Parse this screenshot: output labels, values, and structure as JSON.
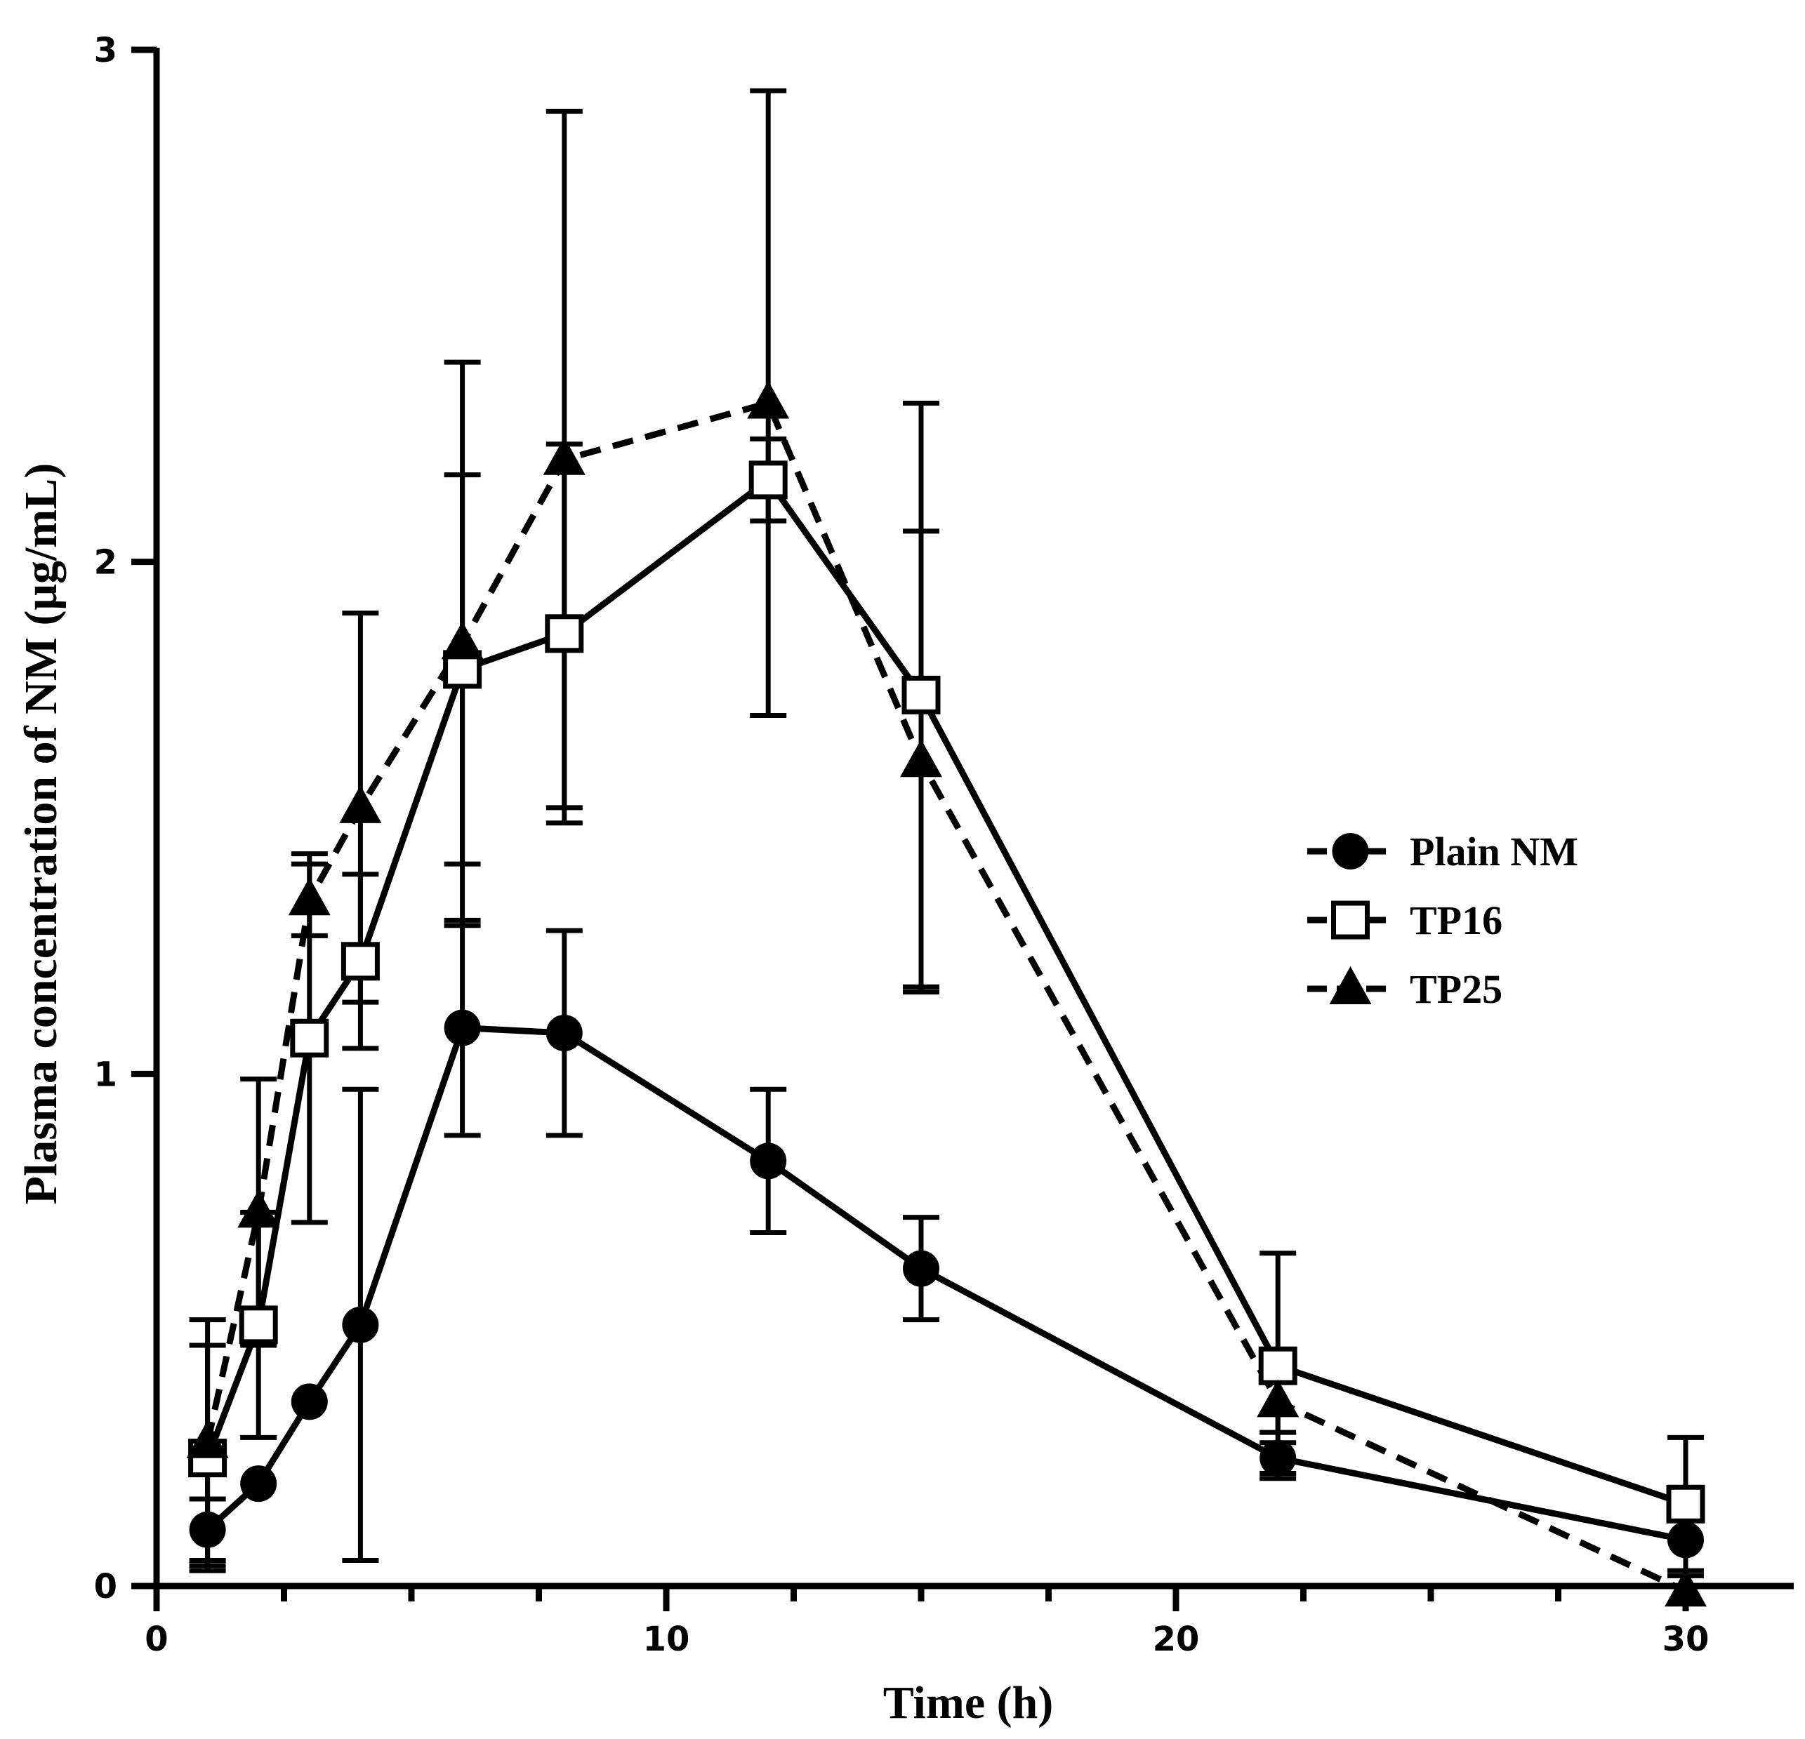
{
  "chart_data": {
    "type": "line",
    "title": "",
    "xlabel": "Time (h)",
    "ylabel": "Plasma concentration of NM (μg/mL)",
    "xlim": [
      0,
      32
    ],
    "ylim": [
      0,
      3
    ],
    "xticks": [
      0,
      10,
      20,
      30
    ],
    "xtick_labels": [
      "0",
      "10",
      "20",
      "30"
    ],
    "yticks": [
      0,
      1,
      2,
      3
    ],
    "ytick_labels": [
      "0",
      "1",
      "2",
      "3"
    ],
    "x_minor_step": 2.5,
    "grid": false,
    "legend_position": "right-middle",
    "series": [
      {
        "name": "Plain NM",
        "marker": "circle",
        "line": "solid",
        "x": [
          1,
          2,
          3,
          4,
          6,
          8,
          12,
          15,
          22,
          30
        ],
        "values": [
          0.11,
          0.2,
          0.36,
          0.51,
          1.09,
          1.08,
          0.83,
          0.62,
          0.25,
          0.09
        ],
        "errors": [
          0.06,
          0.0,
          0.0,
          0.46,
          0.21,
          0.2,
          0.14,
          0.1,
          0.03,
          0.0
        ]
      },
      {
        "name": "TP16",
        "marker": "square-open",
        "line": "solid",
        "x": [
          1,
          2,
          3,
          4,
          6,
          8,
          12,
          15,
          22,
          30
        ],
        "values": [
          0.25,
          0.51,
          1.07,
          1.22,
          1.79,
          1.86,
          2.16,
          1.74,
          0.43,
          0.16
        ],
        "errors": [
          0.22,
          0.22,
          0.36,
          0.17,
          0.38,
          0.37,
          0.08,
          0.57,
          0.22,
          0.13
        ]
      },
      {
        "name": "TP25",
        "marker": "triangle",
        "line": "dashed",
        "x": [
          1,
          2,
          3,
          4,
          6,
          8,
          12,
          15,
          22,
          30
        ],
        "values": [
          0.28,
          0.73,
          1.34,
          1.52,
          1.84,
          2.2,
          2.31,
          1.61,
          0.36,
          -0.01
        ],
        "errors": [
          0.24,
          0.26,
          0.07,
          0.38,
          0.55,
          0.68,
          0.61,
          0.45,
          0.06,
          0.03
        ]
      }
    ]
  }
}
